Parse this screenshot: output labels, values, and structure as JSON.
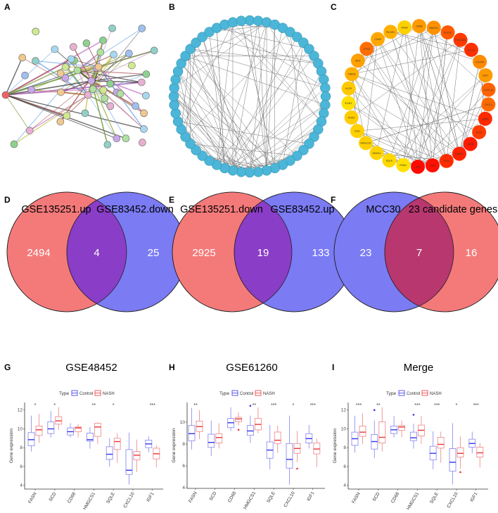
{
  "panel_letters": {
    "A": "A",
    "B": "B",
    "C": "C",
    "D": "D",
    "E": "E",
    "F": "F",
    "G": "G",
    "H": "H",
    "I": "I"
  },
  "network_c": {
    "nodes": [
      "FASN",
      "CD68",
      "HMOX1",
      "KLF10",
      "TSC22D3",
      "FOSL2",
      "CXCR4",
      "IGF1",
      "CXCL10",
      "CXCL2",
      "JUND",
      "KLF6",
      "JUNB",
      "DUSP1",
      "ATF3",
      "FOS",
      "JUN",
      "ESM1",
      "SQLE",
      "INSIG1",
      "HMGCS1",
      "SCD",
      "PDK4",
      "EGR1",
      "KLF9",
      "THBS1",
      "SIK1",
      "ETS2",
      "CD83",
      "PIK3R1"
    ],
    "colors": [
      "#ffd000",
      "#ff9a00",
      "#ff9000",
      "#ff5a00",
      "#ff3a00",
      "#ff3000",
      "#ff8a00",
      "#ff9a00",
      "#ff6200",
      "#ff6a00",
      "#ff2a00",
      "#ff3c00",
      "#ff1c00",
      "#ff2200",
      "#ff2c00",
      "#ff1000",
      "#ff0a00",
      "#ffe000",
      "#ffd800",
      "#ffd400",
      "#ffd000",
      "#ffd000",
      "#ffcc00",
      "#ffe000",
      "#ffc800",
      "#ffb000",
      "#ffa000",
      "#ff6e00",
      "#ffa800",
      "#ffb000"
    ]
  },
  "venns": [
    {
      "left_label": "GSE135251.up",
      "right_label": "GSE83452.down",
      "left_only": "2494",
      "overlap": "4",
      "right_only": "25",
      "left_color": "#f47a7a",
      "right_color": "#7b7bf4",
      "overlap_color": "#8a3dc6"
    },
    {
      "left_label": "GSE135251.down",
      "right_label": "GSE83452.up",
      "left_only": "2925",
      "overlap": "19",
      "right_only": "133",
      "left_color": "#f47a7a",
      "right_color": "#7b7bf4",
      "overlap_color": "#8a3dc6"
    },
    {
      "left_label": "MCC30",
      "right_label": "23 candidate genes",
      "left_only": "23",
      "overlap": "7",
      "right_only": "16",
      "left_color": "#7b7bf4",
      "right_color": "#f47a7a",
      "overlap_color": "#b8376f"
    }
  ],
  "chart_data": [
    {
      "type": "box",
      "title": "GSE48452",
      "ylabel": "Gene expression",
      "ylim": [
        3.6,
        12.8
      ],
      "yticks": [
        4,
        6,
        8,
        10,
        12
      ],
      "legend": {
        "title": "Type",
        "entries": [
          "Control",
          "NASH"
        ],
        "colors": [
          "#3333ee",
          "#ee3333"
        ],
        "placement": "top"
      },
      "categories": [
        "FASN",
        "SCD",
        "CD68",
        "HMGCS1",
        "SQLE",
        "CXCL10",
        "IGF1"
      ],
      "significance": [
        "*",
        "*",
        "",
        "**",
        "*",
        "",
        "***"
      ],
      "series": [
        {
          "name": "Control",
          "boxes": [
            [
              7.6,
              8.2,
              8.85,
              9.6,
              11.4
            ],
            [
              9.1,
              9.5,
              10.0,
              10.75,
              11.9
            ],
            [
              9.1,
              9.35,
              9.7,
              10.1,
              10.6
            ],
            [
              7.9,
              8.7,
              8.85,
              9.55,
              10.2
            ],
            [
              6.0,
              6.75,
              7.3,
              8.1,
              9.0
            ],
            [
              4.1,
              5.15,
              5.6,
              7.8,
              9.6
            ],
            [
              7.5,
              8.0,
              8.4,
              8.8,
              9.2
            ]
          ],
          "outliers": [
            [],
            [],
            [],
            [],
            [],
            [],
            []
          ]
        },
        {
          "name": "NASH",
          "boxes": [
            [
              8.5,
              9.3,
              9.9,
              10.3,
              11.6
            ],
            [
              9.9,
              10.5,
              10.85,
              11.3,
              12.3
            ],
            [
              9.1,
              9.7,
              10.1,
              10.2,
              10.5
            ],
            [
              8.4,
              9.2,
              10.2,
              10.6,
              10.7
            ],
            [
              6.4,
              7.8,
              8.65,
              9.0,
              9.55
            ],
            [
              5.4,
              6.7,
              7.2,
              7.6,
              8.85
            ],
            [
              5.9,
              6.8,
              7.35,
              7.95,
              8.25
            ]
          ],
          "outliers": [
            [],
            [],
            [],
            [],
            [],
            [],
            []
          ]
        }
      ]
    },
    {
      "type": "box",
      "title": "GSE61260",
      "ylabel": "Gene expression",
      "ylim": [
        3.95,
        11.8
      ],
      "yticks": [
        4,
        6,
        8,
        10
      ],
      "legend": {
        "title": "Type",
        "entries": [
          "Control",
          "NASH"
        ],
        "colors": [
          "#3333ee",
          "#ee3333"
        ],
        "placement": "top"
      },
      "categories": [
        "FASN",
        "SCD",
        "CD68",
        "HMGCS1",
        "SQLE",
        "CXCL10",
        "IGF1"
      ],
      "significance": [
        "**",
        "",
        "",
        "**",
        "***",
        "*",
        "***"
      ],
      "series": [
        {
          "name": "Control",
          "boxes": [
            [
              7.5,
              8.3,
              8.95,
              9.7,
              11.3
            ],
            [
              6.9,
              7.7,
              8.15,
              8.9,
              10.15
            ],
            [
              9.2,
              9.5,
              9.95,
              10.35,
              11.35
            ],
            [
              8.1,
              8.8,
              9.2,
              9.7,
              10.6
            ],
            [
              5.7,
              6.7,
              7.45,
              8.2,
              9.75
            ],
            [
              4.3,
              5.8,
              6.6,
              8.05,
              10.6
            ],
            [
              7.6,
              8.1,
              8.5,
              8.95,
              9.75
            ]
          ],
          "outliers": [
            [],
            [],
            [],
            [
              11.5
            ],
            [],
            [],
            []
          ]
        },
        {
          "name": "NASH",
          "boxes": [
            [
              8.45,
              9.15,
              9.6,
              10.1,
              11.1
            ],
            [
              7.6,
              8.1,
              8.6,
              8.95,
              9.9
            ],
            [
              9.7,
              10.05,
              10.3,
              10.45,
              10.9
            ],
            [
              9.0,
              9.3,
              9.8,
              10.35,
              11.35
            ],
            [
              7.2,
              8.05,
              8.35,
              9.1,
              9.7
            ],
            [
              6.35,
              7.15,
              7.6,
              8.05,
              9.2
            ],
            [
              5.9,
              7.1,
              7.55,
              8.1,
              8.5
            ]
          ],
          "outliers": [
            [],
            [],
            [
              9.3
            ],
            [],
            [],
            [
              5.75
            ],
            []
          ]
        }
      ]
    },
    {
      "type": "box",
      "title": "Merge",
      "ylabel": "Gene expression",
      "ylim": [
        3.6,
        12.8
      ],
      "yticks": [
        4,
        6,
        8,
        10,
        12
      ],
      "legend": {
        "title": "Type",
        "entries": [
          "Control",
          "NASH"
        ],
        "colors": [
          "#3333ee",
          "#ee3333"
        ],
        "placement": "top"
      },
      "categories": [
        "FASN",
        "SCD",
        "CD68",
        "HMGCS1",
        "SQLE",
        "CXCL10",
        "IGF1"
      ],
      "significance": [
        "***",
        "**",
        "",
        "***",
        "***",
        "*",
        "***"
      ],
      "series": [
        {
          "name": "Control",
          "boxes": [
            [
              7.5,
              8.25,
              8.95,
              9.65,
              11.4
            ],
            [
              6.9,
              7.85,
              8.65,
              9.4,
              10.9
            ],
            [
              9.1,
              9.5,
              9.9,
              10.3,
              11.35
            ],
            [
              7.9,
              8.75,
              9.05,
              9.65,
              10.55
            ],
            [
              5.7,
              6.7,
              7.4,
              8.15,
              9.75
            ],
            [
              4.1,
              5.5,
              6.45,
              7.9,
              10.6
            ],
            [
              7.4,
              8.05,
              8.45,
              8.9,
              9.7
            ]
          ],
          "outliers": [
            [],
            [
              12.0
            ],
            [],
            [
              11.5
            ],
            [],
            [],
            []
          ]
        },
        {
          "name": "NASH",
          "boxes": [
            [
              8.4,
              9.2,
              9.65,
              10.3,
              11.65
            ],
            [
              7.6,
              8.5,
              9.1,
              10.75,
              12.3
            ],
            [
              9.1,
              9.85,
              10.2,
              10.35,
              10.9
            ],
            [
              8.4,
              9.25,
              9.85,
              10.4,
              11.35
            ],
            [
              6.4,
              7.95,
              8.35,
              9.1,
              9.7
            ],
            [
              5.75,
              7.0,
              7.4,
              8.0,
              9.2
            ],
            [
              5.9,
              7.0,
              7.45,
              8.05,
              8.5
            ]
          ],
          "outliers": [
            [],
            [],
            [],
            [],
            [],
            [
              5.4
            ],
            []
          ]
        }
      ]
    }
  ]
}
